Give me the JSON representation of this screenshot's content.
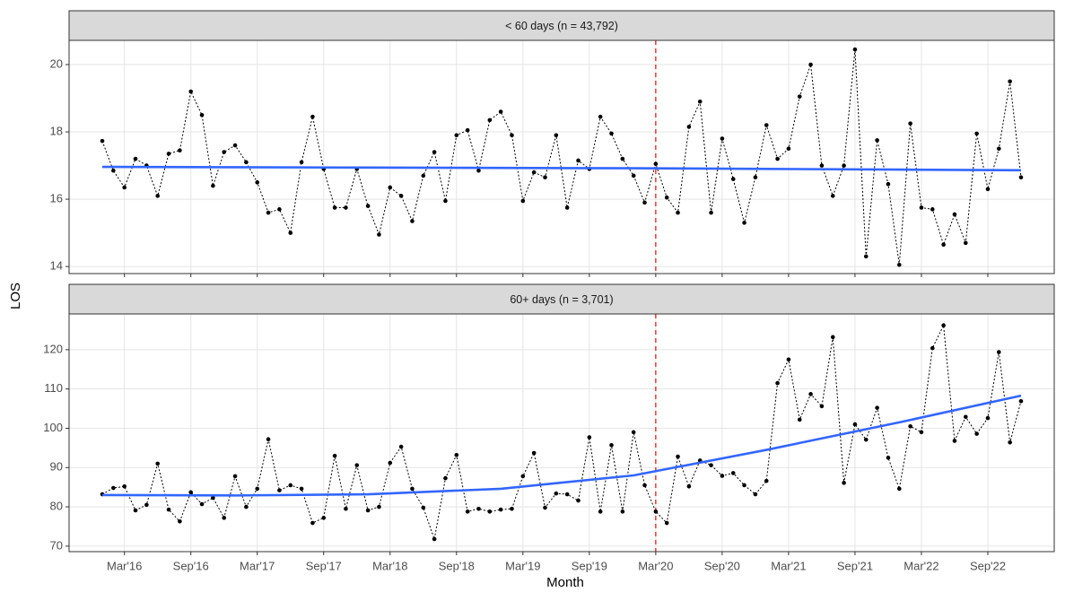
{
  "xlabel": "Month",
  "ylabel": "LOS",
  "x": [
    "2016-01",
    "2016-02",
    "2016-03",
    "2016-04",
    "2016-05",
    "2016-06",
    "2016-07",
    "2016-08",
    "2016-09",
    "2016-10",
    "2016-11",
    "2016-12",
    "2017-01",
    "2017-02",
    "2017-03",
    "2017-04",
    "2017-05",
    "2017-06",
    "2017-07",
    "2017-08",
    "2017-09",
    "2017-10",
    "2017-11",
    "2017-12",
    "2018-01",
    "2018-02",
    "2018-03",
    "2018-04",
    "2018-05",
    "2018-06",
    "2018-07",
    "2018-08",
    "2018-09",
    "2018-10",
    "2018-11",
    "2018-12",
    "2019-01",
    "2019-02",
    "2019-03",
    "2019-04",
    "2019-05",
    "2019-06",
    "2019-07",
    "2019-08",
    "2019-09",
    "2019-10",
    "2019-11",
    "2019-12",
    "2020-01",
    "2020-02",
    "2020-03",
    "2020-04",
    "2020-05",
    "2020-06",
    "2020-07",
    "2020-08",
    "2020-09",
    "2020-10",
    "2020-11",
    "2020-12",
    "2021-01",
    "2021-02",
    "2021-03",
    "2021-04",
    "2021-05",
    "2021-06",
    "2021-07",
    "2021-08",
    "2021-09",
    "2021-10",
    "2021-11",
    "2021-12",
    "2022-01",
    "2022-02",
    "2022-03",
    "2022-04",
    "2022-05",
    "2022-06",
    "2022-07",
    "2022-08",
    "2022-09",
    "2022-10",
    "2022-11",
    "2022-12"
  ],
  "xlim": [
    "2015-10",
    "2023-03"
  ],
  "xticks": [
    {
      "value": "2016-03",
      "label": "Mar'16"
    },
    {
      "value": "2016-09",
      "label": "Sep'16"
    },
    {
      "value": "2017-03",
      "label": "Mar'17"
    },
    {
      "value": "2017-09",
      "label": "Sep'17"
    },
    {
      "value": "2018-03",
      "label": "Mar'18"
    },
    {
      "value": "2018-09",
      "label": "Sep'18"
    },
    {
      "value": "2019-03",
      "label": "Mar'19"
    },
    {
      "value": "2019-09",
      "label": "Sep'19"
    },
    {
      "value": "2020-03",
      "label": "Mar'20"
    },
    {
      "value": "2020-09",
      "label": "Sep'20"
    },
    {
      "value": "2021-03",
      "label": "Mar'21"
    },
    {
      "value": "2021-09",
      "label": "Sep'21"
    },
    {
      "value": "2022-03",
      "label": "Mar'22"
    },
    {
      "value": "2022-09",
      "label": "Sep'22"
    }
  ],
  "vline": {
    "value": "2020-03",
    "color": "#e41a1c"
  },
  "grid": true,
  "chart_data": [
    {
      "type": "line",
      "strip": "< 60 days (n = 43,792)",
      "ylim": [
        13.79,
        20.72
      ],
      "yticks": [
        14,
        16,
        18,
        20
      ],
      "series": [
        {
          "color": "#000000",
          "style": "dotted",
          "markers": true,
          "values": [
            17.73,
            16.85,
            16.35,
            17.2,
            17.0,
            16.1,
            17.35,
            17.45,
            19.2,
            18.5,
            16.4,
            17.4,
            17.6,
            17.1,
            16.5,
            15.6,
            15.7,
            15.0,
            17.1,
            18.45,
            16.9,
            15.75,
            15.75,
            16.9,
            15.8,
            14.95,
            16.35,
            16.1,
            15.35,
            16.7,
            17.4,
            15.95,
            17.9,
            18.05,
            16.85,
            18.35,
            18.6,
            17.9,
            15.95,
            16.8,
            16.65,
            17.9,
            15.75,
            17.15,
            16.9,
            18.45,
            17.95,
            17.2,
            16.7,
            15.9,
            17.05,
            16.05,
            15.6,
            18.15,
            18.9,
            15.6,
            17.8,
            16.6,
            15.3,
            16.65,
            18.2,
            17.2,
            17.5,
            19.05,
            20.0,
            17.0,
            16.1,
            17.0,
            20.45,
            14.3,
            17.75,
            16.45,
            14.05,
            18.25,
            15.75,
            15.7,
            14.65,
            15.55,
            14.7,
            17.95,
            16.3,
            17.5,
            19.5,
            16.65
          ]
        },
        {
          "color": "#3366ff",
          "style": "solid",
          "markers": false,
          "x": [
            "2016-01",
            "2017-01",
            "2018-01",
            "2019-01",
            "2020-01",
            "2021-01",
            "2022-01",
            "2022-12"
          ],
          "values": [
            16.96,
            16.95,
            16.94,
            16.93,
            16.92,
            16.9,
            16.88,
            16.86
          ]
        }
      ]
    },
    {
      "type": "line",
      "strip": "60+ days (n = 3,701)",
      "ylim": [
        68.6,
        129.1
      ],
      "yticks": [
        70,
        80,
        90,
        100,
        110,
        120
      ],
      "series": [
        {
          "color": "#000000",
          "style": "dotted",
          "markers": true,
          "values": [
            83.2,
            84.8,
            85.2,
            79.1,
            80.5,
            91.0,
            79.3,
            76.3,
            83.7,
            80.7,
            82.3,
            77.2,
            87.8,
            80.0,
            84.6,
            97.2,
            84.2,
            85.5,
            84.6,
            75.9,
            77.2,
            93.0,
            79.5,
            90.6,
            79.1,
            80.0,
            91.2,
            95.3,
            84.6,
            79.8,
            71.8,
            87.3,
            93.2,
            78.8,
            79.5,
            78.8,
            79.3,
            79.5,
            87.8,
            93.7,
            79.8,
            83.4,
            83.2,
            81.6,
            97.7,
            78.8,
            95.7,
            78.8,
            99.0,
            85.5,
            78.8,
            75.9,
            92.8,
            85.2,
            91.8,
            90.6,
            87.9,
            88.6,
            85.5,
            83.2,
            86.6,
            111.5,
            117.5,
            102.2,
            108.7,
            105.6,
            123.2,
            86.1,
            101.0,
            97.1,
            105.2,
            92.5,
            84.6,
            100.5,
            99.0,
            120.4,
            126.2,
            96.8,
            102.9,
            98.6,
            102.6,
            119.4,
            96.4,
            106.9
          ]
        },
        {
          "color": "#3366ff",
          "style": "solid",
          "markers": false,
          "x": [
            "2016-01",
            "2017-01",
            "2018-01",
            "2019-01",
            "2020-01",
            "2021-01",
            "2022-01",
            "2022-12"
          ],
          "values": [
            83.0,
            82.9,
            83.2,
            84.6,
            88.0,
            94.5,
            101.5,
            108.3
          ]
        }
      ]
    }
  ]
}
